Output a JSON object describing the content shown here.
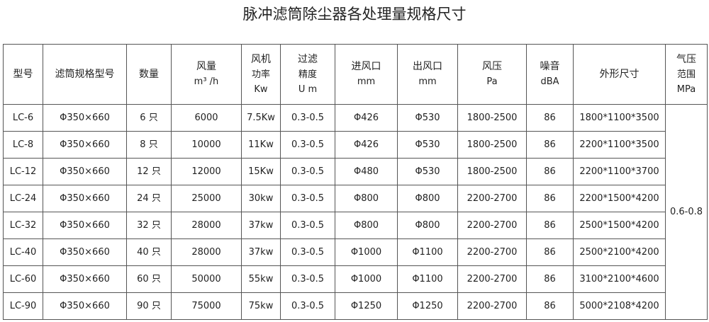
{
  "title": "脉冲滤筒除尘器各处理量规格尺寸",
  "headers": [
    {
      "lines": [
        "型号"
      ]
    },
    {
      "lines": [
        "滤筒规格型号"
      ]
    },
    {
      "lines": [
        "数量"
      ]
    },
    {
      "lines": [
        "风量",
        "m³ /h"
      ]
    },
    {
      "lines": [
        "风机",
        "功率",
        "Kw"
      ]
    },
    {
      "lines": [
        "过滤",
        "精度",
        "U m"
      ]
    },
    {
      "lines": [
        "进风口",
        "mm"
      ]
    },
    {
      "lines": [
        "出风口",
        "mm"
      ]
    },
    {
      "lines": [
        "风压",
        "Pa"
      ]
    },
    {
      "lines": [
        "噪音",
        "dBA"
      ]
    },
    {
      "lines": [
        "外形尺寸"
      ]
    },
    {
      "lines": [
        "气压",
        "范围",
        "MPa"
      ]
    }
  ],
  "rows": [
    [
      "LC-6",
      "Φ350×660",
      "6 只",
      "6000",
      "7.5Kw",
      "0.3-0.5",
      "Φ426",
      "Φ530",
      "1800-2500",
      "86",
      "1800*1100*3500"
    ],
    [
      "LC-8",
      "Φ350×660",
      "8 只",
      "10000",
      "11Kw",
      "0.3-0.5",
      "Φ426",
      "Φ530",
      "1800-2500",
      "86",
      "2200*1100*3500"
    ],
    [
      "LC-12",
      "Φ350×660",
      "12 只",
      "12000",
      "15Kw",
      "0.3-0.5",
      "Φ480",
      "Φ530",
      "1800-2500",
      "86",
      "2200*1100*3700"
    ],
    [
      "LC-24",
      "Φ350×660",
      "24 只",
      "25000",
      "30kw",
      "0.3-0.5",
      "Φ800",
      "Φ800",
      "2200-2700",
      "86",
      "2200*1500*4200"
    ],
    [
      "LC-32",
      "Φ350×660",
      "32 只",
      "28000",
      "37kw",
      "0.3-0.5",
      "Φ800",
      "Φ800",
      "2200-2700",
      "86",
      "2500*1500*4200"
    ],
    [
      "LC-40",
      "Φ350×660",
      "40 只",
      "28000",
      "37kw",
      "0.3-0.5",
      "Φ1000",
      "Φ1100",
      "2200-2700",
      "86",
      "2500*2100*4200"
    ],
    [
      "LC-60",
      "Φ350×660",
      "60 只",
      "50000",
      "55kw",
      "0.3-0.5",
      "Φ1000",
      "Φ1100",
      "2200-2700",
      "86",
      "3100*2100*4600"
    ],
    [
      "LC-90",
      "Φ350×660",
      "90 只",
      "75000",
      "75kw",
      "0.3-0.5",
      "Φ1250",
      "Φ1250",
      "2200-2700",
      "86",
      "5000*2108*4200"
    ]
  ],
  "pressure_range": "0.6-0.8"
}
